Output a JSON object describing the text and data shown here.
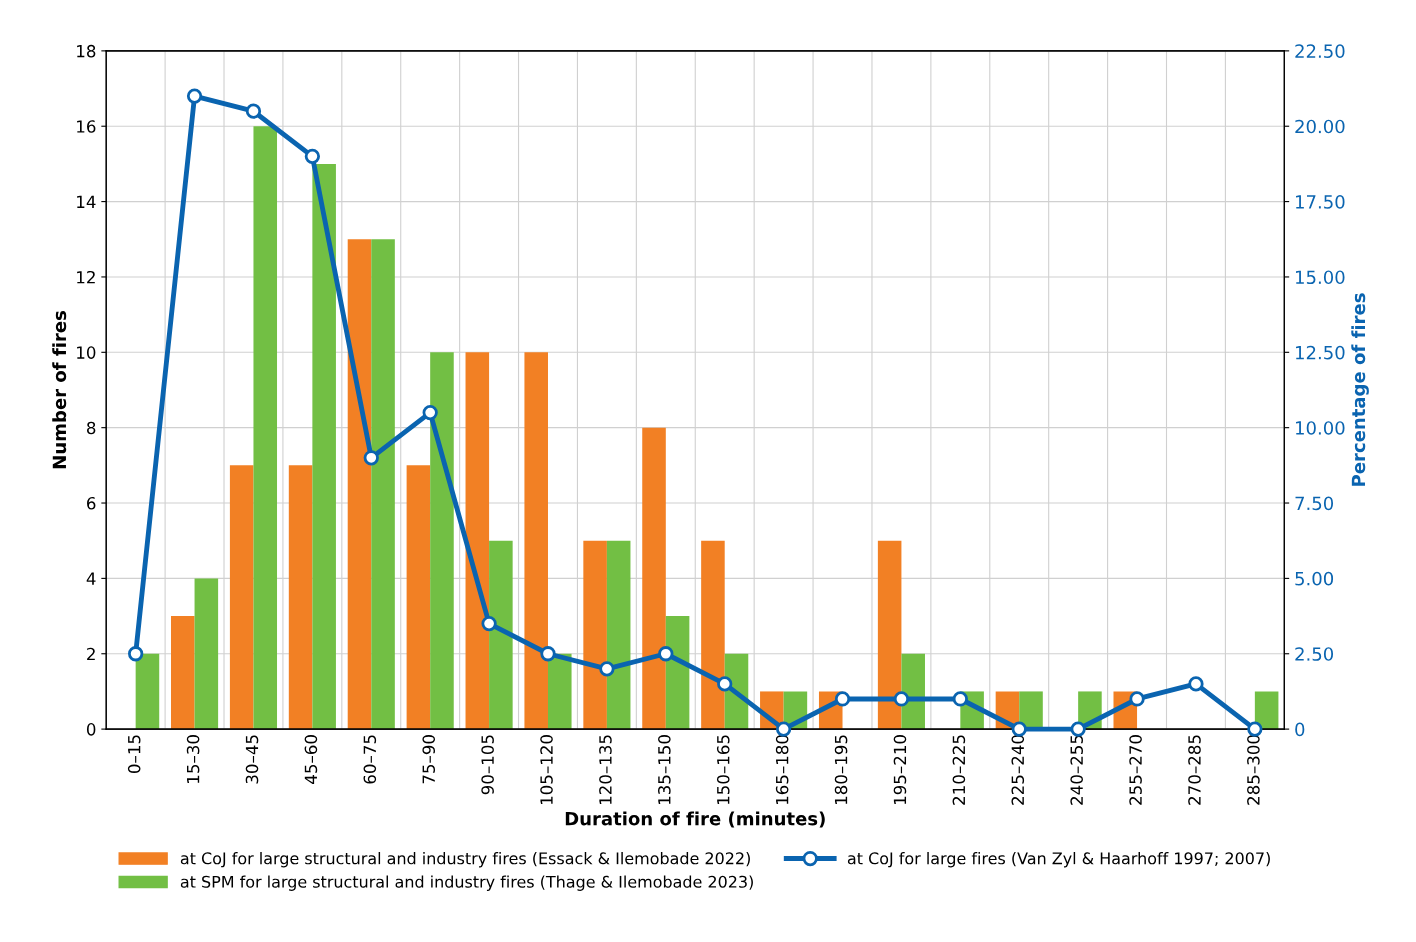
{
  "chart_data": {
    "type": "bar",
    "xlabel": "Duration of fire (minutes)",
    "ylabel": "Number of fires",
    "y2label": "Percentage of fires",
    "categories": [
      "0–15",
      "15–30",
      "30–45",
      "45–60",
      "60–75",
      "75–90",
      "90–105",
      "105–120",
      "120–135",
      "135–150",
      "150–165",
      "165–180",
      "180–195",
      "195–210",
      "210–225",
      "225–240",
      "240–255",
      "255–270",
      "270–285",
      "285–300"
    ],
    "series": [
      {
        "name": "at CoJ for large structural and industry fires (Essack & Ilemobade 2022)",
        "color": "#f28024",
        "values": [
          0,
          3,
          7,
          7,
          13,
          7,
          10,
          10,
          5,
          8,
          5,
          1,
          1,
          5,
          0,
          1,
          0,
          1,
          0,
          0
        ]
      },
      {
        "name": "at SPM for large structural and industry fires (Thage & Ilemobade 2023)",
        "color": "#72bf44",
        "values": [
          2,
          4,
          16,
          15,
          13,
          10,
          5,
          2,
          5,
          3,
          2,
          1,
          0,
          2,
          1,
          1,
          1,
          0,
          0,
          1
        ]
      },
      {
        "name": "at CoJ for large fires (Van Zyl & Haarhoff 1997; 2007)",
        "color": "#0a64b0",
        "type": "line",
        "axis": "y2",
        "marker": "circle",
        "values": [
          2.5,
          21,
          20.5,
          19,
          9,
          10.5,
          3.5,
          2.5,
          2,
          2.5,
          1.5,
          0,
          1,
          1,
          1,
          0,
          0,
          1,
          1.5,
          0
        ]
      }
    ],
    "ylim": [
      0,
      18
    ],
    "yticks": [
      0,
      2,
      4,
      6,
      8,
      10,
      12,
      14,
      16,
      18
    ],
    "y2lim": [
      0,
      22.5
    ],
    "y2ticks": [
      0,
      {
        "value": 2.5,
        "label": "2.50"
      },
      {
        "value": 5,
        "label": "5.00"
      },
      {
        "value": 7.5,
        "label": "7.50"
      },
      {
        "value": 10,
        "label": "10.00"
      },
      {
        "value": 12.5,
        "label": "12.50"
      },
      {
        "value": 15,
        "label": "15.00"
      },
      {
        "value": 17.5,
        "label": "17.50"
      },
      {
        "value": 20,
        "label": "20.00"
      },
      {
        "value": 22.5,
        "label": "22.50"
      }
    ],
    "grid": true,
    "legend": "bottom"
  }
}
